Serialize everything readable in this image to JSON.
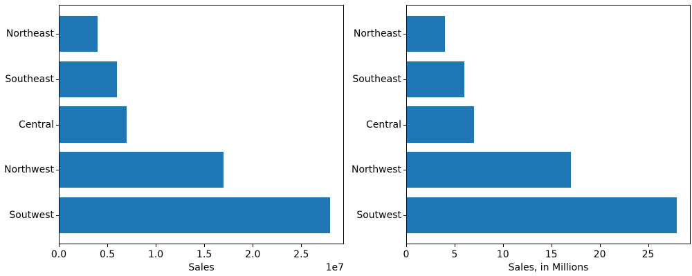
{
  "figure": {
    "background": "#ffffff",
    "bar_color": "#1f77b4",
    "spine_color": "#000000",
    "text_color": "#000000"
  },
  "chart_data": [
    {
      "type": "bar",
      "orientation": "horizontal",
      "title": "",
      "categories": [
        "Northeast",
        "Southeast",
        "Central",
        "Northwest",
        "Soutwest"
      ],
      "values": [
        4000000,
        6000000,
        7000000,
        17000000,
        28000000
      ],
      "xlabel": "Sales",
      "ylabel": "",
      "xlim": [
        0,
        29400000
      ],
      "xticks": [
        0,
        5000000,
        10000000,
        15000000,
        20000000,
        25000000
      ],
      "xtick_labels": [
        "0.0",
        "0.5",
        "1.0",
        "1.5",
        "2.0",
        "2.5"
      ],
      "offset_text": "1e7",
      "grid": false,
      "legend": "none",
      "category_order": "top-to-bottom"
    },
    {
      "type": "bar",
      "orientation": "horizontal",
      "title": "",
      "categories": [
        "Northeast",
        "Southeast",
        "Central",
        "Northwest",
        "Soutwest"
      ],
      "values": [
        4,
        6,
        7,
        17,
        28
      ],
      "xlabel": "Sales, in Millions",
      "ylabel": "",
      "xlim": [
        0,
        29.4
      ],
      "xticks": [
        0,
        5,
        10,
        15,
        20,
        25
      ],
      "xtick_labels": [
        "0",
        "5",
        "10",
        "15",
        "20",
        "25"
      ],
      "offset_text": "",
      "grid": false,
      "legend": "none",
      "category_order": "top-to-bottom"
    }
  ]
}
